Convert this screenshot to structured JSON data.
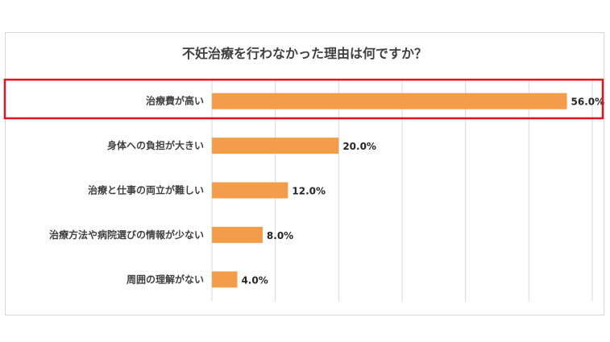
{
  "chart_data": {
    "type": "bar",
    "orientation": "horizontal",
    "title": "不妊治療を行わなかった理由は何ですか？",
    "categories": [
      "治療費が高い",
      "身体への負担が大きい",
      "治療と仕事の両立が難しい",
      "治療方法や病院選びの情報が少ない",
      "周囲の理解がない"
    ],
    "values": [
      56.0,
      20.0,
      12.0,
      8.0,
      4.0
    ],
    "value_labels": [
      "56.0%",
      "20.0%",
      "12.0%",
      "8.0%",
      "4.0%"
    ],
    "xlim": [
      0,
      60
    ],
    "grid": true,
    "legend": "none",
    "highlighted_category": "治療費が高い",
    "colors": {
      "bar": "#F39C4A",
      "highlight_box": "#E0141E",
      "grid": "#d9d9d9",
      "text": "#404040"
    }
  }
}
